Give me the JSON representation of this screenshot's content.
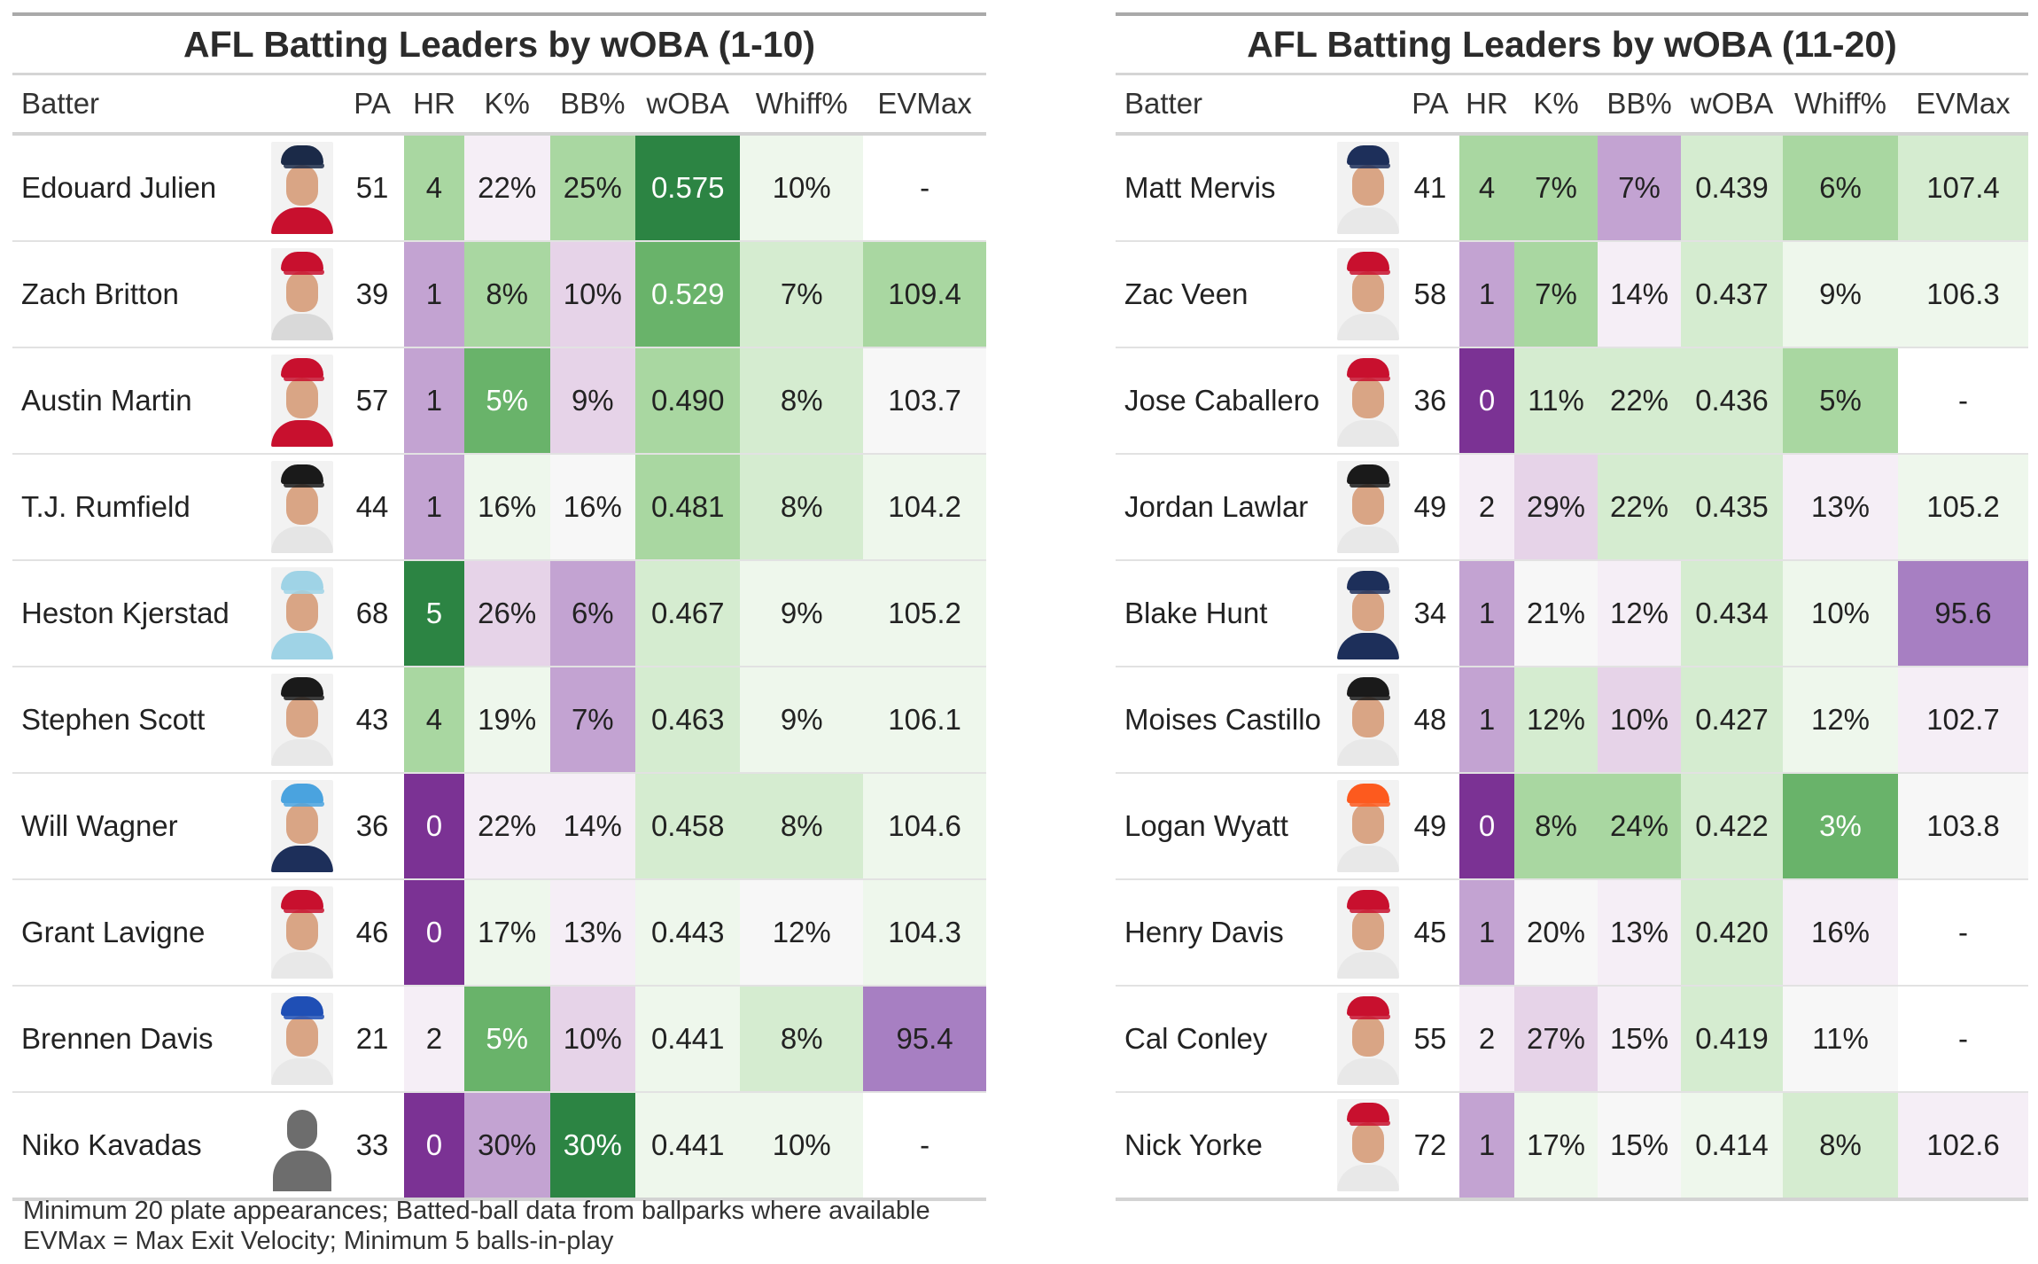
{
  "columns": [
    "Batter",
    "PA",
    "HR",
    "K%",
    "BB%",
    "wOBA",
    "Whiff%",
    "EVMax"
  ],
  "colors": {
    "g1": "#eef7ec",
    "g2": "#d5ecd0",
    "g3": "#a9d7a1",
    "g4": "#69b36a",
    "g5": "#2c8443",
    "p1": "#f5eef6",
    "p2": "#e6d3e8",
    "p3": "#c3a3d2",
    "p4": "#a77fc2",
    "p5": "#7b3294",
    "neutral": "#f7f7f7",
    "white": "#ffffff"
  },
  "tables": [
    {
      "title": "AFL Batting Leaders by wOBA (1-10)",
      "rows": [
        {
          "name": "Edouard Julien",
          "pa": "51",
          "hr": "4",
          "k": "22%",
          "bb": "25%",
          "woba": "0.575",
          "whiff": "10%",
          "ev": "-",
          "photo": {
            "cap": "#1b2a48",
            "jersey": "#c8102e"
          },
          "bg": [
            "white",
            "g3",
            "p1",
            "g3",
            "g5",
            "g1",
            "white"
          ]
        },
        {
          "name": "Zach Britton",
          "pa": "39",
          "hr": "1",
          "k": "8%",
          "bb": "10%",
          "woba": "0.529",
          "whiff": "7%",
          "ev": "109.4",
          "photo": {
            "cap": "#c8102e",
            "jersey": "#d9d9d9"
          },
          "bg": [
            "white",
            "p3",
            "g3",
            "p2",
            "g4",
            "g2",
            "g3"
          ]
        },
        {
          "name": "Austin Martin",
          "pa": "57",
          "hr": "1",
          "k": "5%",
          "bb": "9%",
          "woba": "0.490",
          "whiff": "8%",
          "ev": "103.7",
          "photo": {
            "cap": "#c8102e",
            "jersey": "#c8102e"
          },
          "bg": [
            "white",
            "p3",
            "g4",
            "p2",
            "g3",
            "g2",
            "neutral"
          ]
        },
        {
          "name": "T.J. Rumfield",
          "pa": "44",
          "hr": "1",
          "k": "16%",
          "bb": "16%",
          "woba": "0.481",
          "whiff": "8%",
          "ev": "104.2",
          "photo": {
            "cap": "#1a1a1a",
            "jersey": "#e5e5e5"
          },
          "bg": [
            "white",
            "p3",
            "g1",
            "neutral",
            "g3",
            "g2",
            "g1"
          ]
        },
        {
          "name": "Heston Kjerstad",
          "pa": "68",
          "hr": "5",
          "k": "26%",
          "bb": "6%",
          "woba": "0.467",
          "whiff": "9%",
          "ev": "105.2",
          "photo": {
            "cap": "#9fd3e6",
            "jersey": "#9fd3e6"
          },
          "bg": [
            "white",
            "g5",
            "p2",
            "p3",
            "g2",
            "g1",
            "g1"
          ]
        },
        {
          "name": "Stephen Scott",
          "pa": "43",
          "hr": "4",
          "k": "19%",
          "bb": "7%",
          "woba": "0.463",
          "whiff": "9%",
          "ev": "106.1",
          "photo": {
            "cap": "#1a1a1a",
            "jersey": "#e8e8e8"
          },
          "bg": [
            "white",
            "g3",
            "g1",
            "p3",
            "g2",
            "g1",
            "g1"
          ]
        },
        {
          "name": "Will Wagner",
          "pa": "36",
          "hr": "0",
          "k": "22%",
          "bb": "14%",
          "woba": "0.458",
          "whiff": "8%",
          "ev": "104.6",
          "photo": {
            "cap": "#4aa3df",
            "jersey": "#1d2f5a"
          },
          "bg": [
            "white",
            "p5",
            "p1",
            "p1",
            "g2",
            "g2",
            "g1"
          ]
        },
        {
          "name": "Grant Lavigne",
          "pa": "46",
          "hr": "0",
          "k": "17%",
          "bb": "13%",
          "woba": "0.443",
          "whiff": "12%",
          "ev": "104.3",
          "photo": {
            "cap": "#c8102e",
            "jersey": "#e8e8e8"
          },
          "bg": [
            "white",
            "p5",
            "g1",
            "p1",
            "g1",
            "neutral",
            "g1"
          ]
        },
        {
          "name": "Brennen Davis",
          "pa": "21",
          "hr": "2",
          "k": "5%",
          "bb": "10%",
          "woba": "0.441",
          "whiff": "8%",
          "ev": "95.4",
          "photo": {
            "cap": "#1f4fb5",
            "jersey": "#e8e8e8"
          },
          "bg": [
            "white",
            "p1",
            "g4",
            "p2",
            "g1",
            "g2",
            "p4"
          ]
        },
        {
          "name": "Niko Kavadas",
          "pa": "33",
          "hr": "0",
          "k": "30%",
          "bb": "30%",
          "woba": "0.441",
          "whiff": "10%",
          "ev": "-",
          "photo": {
            "silhouette": true
          },
          "bg": [
            "white",
            "p5",
            "p3",
            "g5",
            "g1",
            "g1",
            "white"
          ]
        }
      ]
    },
    {
      "title": "AFL Batting Leaders by wOBA (11-20)",
      "rows": [
        {
          "name": "Matt Mervis",
          "pa": "41",
          "hr": "4",
          "k": "7%",
          "bb": "7%",
          "woba": "0.439",
          "whiff": "6%",
          "ev": "107.4",
          "photo": {
            "cap": "#1d2f5a",
            "jersey": "#e8e8e8"
          },
          "bg": [
            "white",
            "g3",
            "g3",
            "p3",
            "g2",
            "g3",
            "g2"
          ]
        },
        {
          "name": "Zac Veen",
          "pa": "58",
          "hr": "1",
          "k": "7%",
          "bb": "14%",
          "woba": "0.437",
          "whiff": "9%",
          "ev": "106.3",
          "photo": {
            "cap": "#c8102e",
            "jersey": "#e8e8e8"
          },
          "bg": [
            "white",
            "p3",
            "g3",
            "p1",
            "g2",
            "g1",
            "g1"
          ]
        },
        {
          "name": "Jose Caballero",
          "pa": "36",
          "hr": "0",
          "k": "11%",
          "bb": "22%",
          "woba": "0.436",
          "whiff": "5%",
          "ev": "-",
          "photo": {
            "cap": "#c8102e",
            "jersey": "#e8e8e8"
          },
          "bg": [
            "white",
            "p5",
            "g2",
            "g2",
            "g2",
            "g3",
            "white"
          ]
        },
        {
          "name": "Jordan Lawlar",
          "pa": "49",
          "hr": "2",
          "k": "29%",
          "bb": "22%",
          "woba": "0.435",
          "whiff": "13%",
          "ev": "105.2",
          "photo": {
            "cap": "#1a1a1a",
            "jersey": "#e8e8e8"
          },
          "bg": [
            "white",
            "p1",
            "p2",
            "g2",
            "g2",
            "p1",
            "g1"
          ]
        },
        {
          "name": "Blake Hunt",
          "pa": "34",
          "hr": "1",
          "k": "21%",
          "bb": "12%",
          "woba": "0.434",
          "whiff": "10%",
          "ev": "95.6",
          "photo": {
            "cap": "#1d2f5a",
            "jersey": "#1d2f5a"
          },
          "bg": [
            "white",
            "p3",
            "neutral",
            "p1",
            "g2",
            "g1",
            "p4"
          ]
        },
        {
          "name": "Moises Castillo",
          "pa": "48",
          "hr": "1",
          "k": "12%",
          "bb": "10%",
          "woba": "0.427",
          "whiff": "12%",
          "ev": "102.7",
          "photo": {
            "cap": "#1a1a1a",
            "jersey": "#e8e8e8"
          },
          "bg": [
            "white",
            "p3",
            "g2",
            "p2",
            "g2",
            "g1",
            "p1"
          ]
        },
        {
          "name": "Logan Wyatt",
          "pa": "49",
          "hr": "0",
          "k": "8%",
          "bb": "24%",
          "woba": "0.422",
          "whiff": "3%",
          "ev": "103.8",
          "photo": {
            "cap": "#fd5a1e",
            "jersey": "#e8e8e8"
          },
          "bg": [
            "white",
            "p5",
            "g3",
            "g3",
            "g2",
            "g4",
            "neutral"
          ]
        },
        {
          "name": "Henry Davis",
          "pa": "45",
          "hr": "1",
          "k": "20%",
          "bb": "13%",
          "woba": "0.420",
          "whiff": "16%",
          "ev": "-",
          "photo": {
            "cap": "#c8102e",
            "jersey": "#e8e8e8"
          },
          "bg": [
            "white",
            "p3",
            "neutral",
            "p1",
            "g2",
            "p1",
            "white"
          ]
        },
        {
          "name": "Cal Conley",
          "pa": "55",
          "hr": "2",
          "k": "27%",
          "bb": "15%",
          "woba": "0.419",
          "whiff": "11%",
          "ev": "-",
          "photo": {
            "cap": "#c8102e",
            "jersey": "#e8e8e8"
          },
          "bg": [
            "white",
            "p1",
            "p2",
            "p1",
            "g2",
            "neutral",
            "white"
          ]
        },
        {
          "name": "Nick Yorke",
          "pa": "72",
          "hr": "1",
          "k": "17%",
          "bb": "15%",
          "woba": "0.414",
          "whiff": "8%",
          "ev": "102.6",
          "photo": {
            "cap": "#c8102e",
            "jersey": "#e8e8e8"
          },
          "bg": [
            "white",
            "p3",
            "g1",
            "neutral",
            "g1",
            "g2",
            "p1"
          ]
        }
      ]
    }
  ],
  "footnote": {
    "line1": "Minimum 20 plate appearances; Batted-ball data from ballparks where available",
    "line2": "EVMax = Max Exit Velocity; Minimum 5 balls-in-play"
  }
}
